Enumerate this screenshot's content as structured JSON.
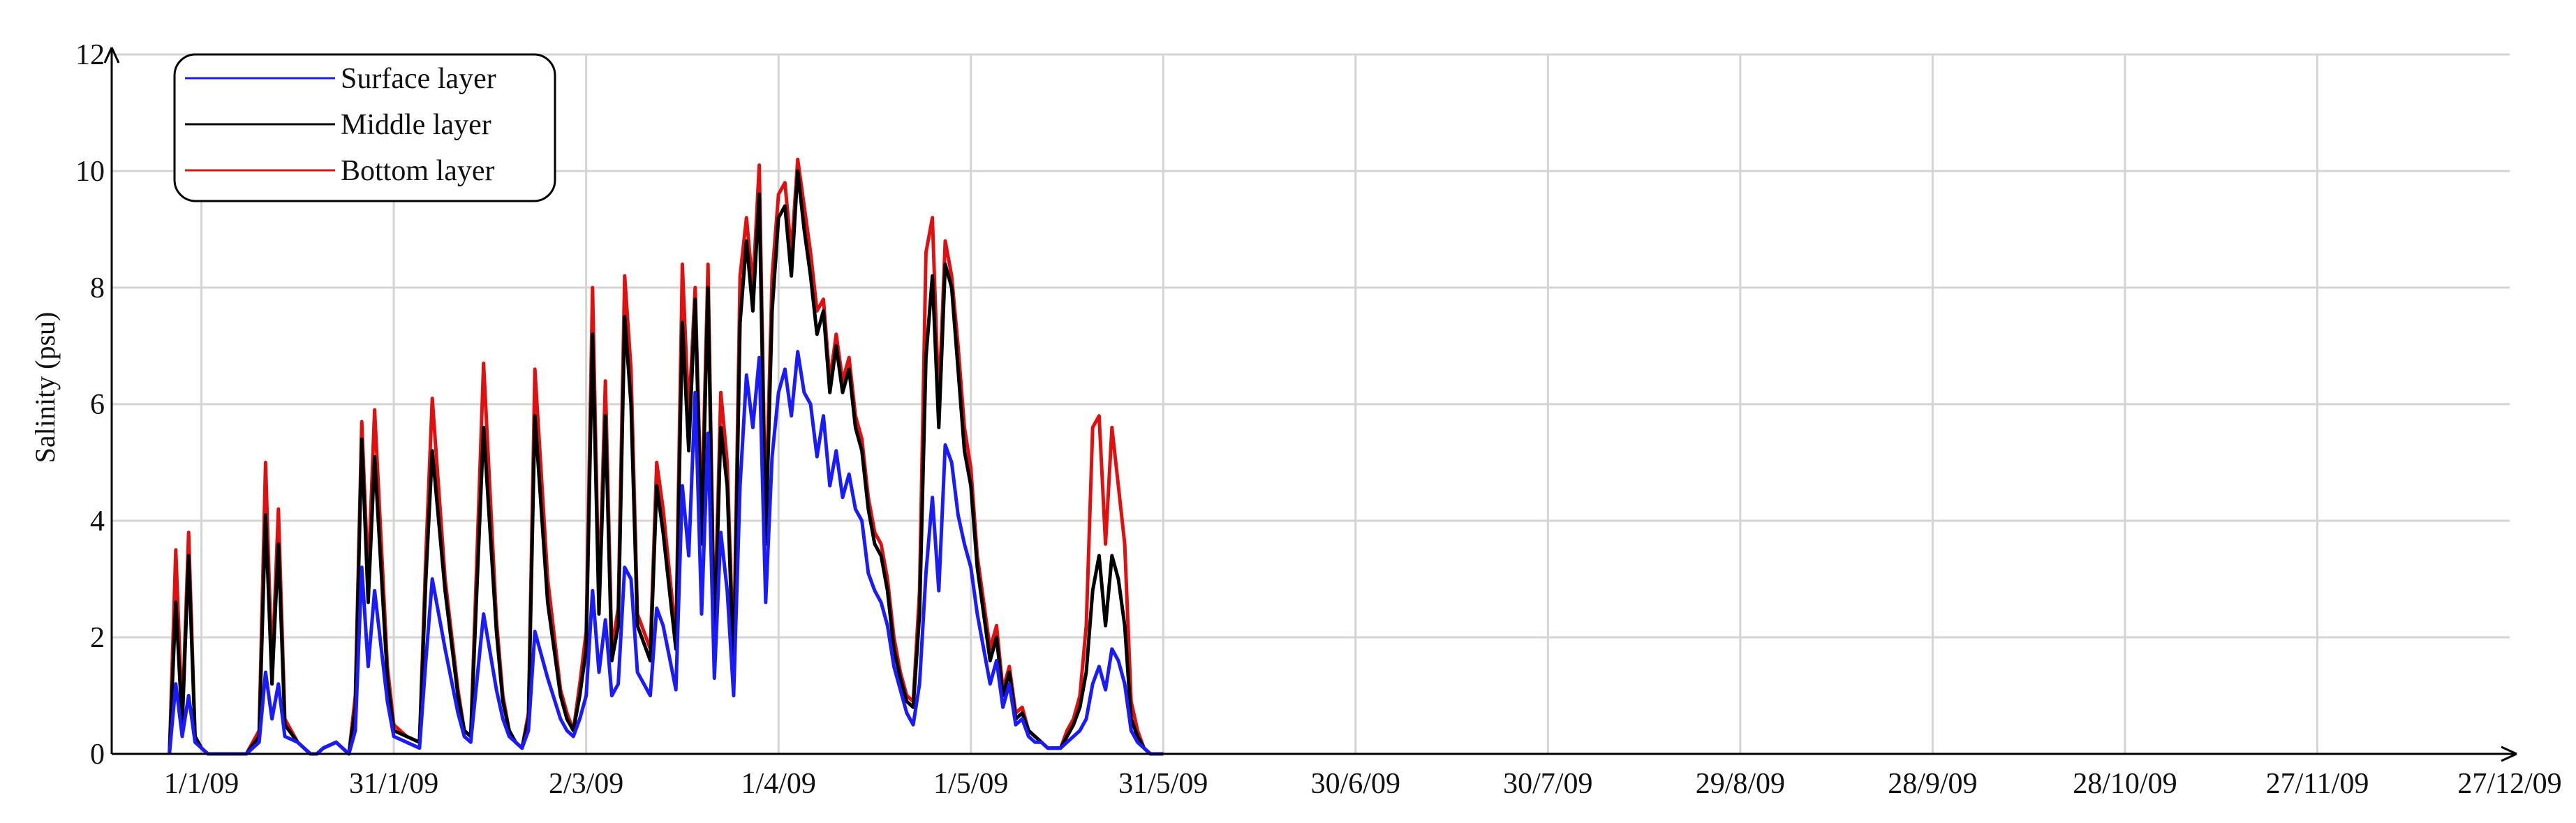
{
  "chart_data": {
    "type": "line",
    "title": "",
    "xlabel": "",
    "ylabel": "Salinity (psu)",
    "ylim": [
      0,
      12
    ],
    "yticks": [
      0,
      2,
      4,
      6,
      8,
      10,
      12
    ],
    "xlim": [
      "2008-12-18",
      "2009-12-27"
    ],
    "xticks": [
      {
        "date": "2009-01-01",
        "label": "1/1/09"
      },
      {
        "date": "2009-01-31",
        "label": "31/1/09"
      },
      {
        "date": "2009-03-02",
        "label": "2/3/09"
      },
      {
        "date": "2009-04-01",
        "label": "1/4/09"
      },
      {
        "date": "2009-05-01",
        "label": "1/5/09"
      },
      {
        "date": "2009-05-31",
        "label": "31/5/09"
      },
      {
        "date": "2009-06-30",
        "label": "30/6/09"
      },
      {
        "date": "2009-07-30",
        "label": "30/7/09"
      },
      {
        "date": "2009-08-29",
        "label": "29/8/09"
      },
      {
        "date": "2009-09-28",
        "label": "28/9/09"
      },
      {
        "date": "2009-10-28",
        "label": "28/10/09"
      },
      {
        "date": "2009-11-27",
        "label": "27/11/09"
      },
      {
        "date": "2009-12-27",
        "label": "27/12/09"
      }
    ],
    "grid": true,
    "legend_position": "top-left",
    "series": [
      {
        "name": "Surface layer",
        "color": "#1a1aff",
        "x": [
          "2008-12-27",
          "2008-12-28",
          "2008-12-29",
          "2008-12-30",
          "2008-12-31",
          "2009-01-01",
          "2009-01-02",
          "2009-01-04",
          "2009-01-05",
          "2009-01-06",
          "2009-01-07",
          "2009-01-08",
          "2009-01-10",
          "2009-01-11",
          "2009-01-12",
          "2009-01-13",
          "2009-01-14",
          "2009-01-16",
          "2009-01-17",
          "2009-01-18",
          "2009-01-19",
          "2009-01-20",
          "2009-01-22",
          "2009-01-23",
          "2009-01-24",
          "2009-01-25",
          "2009-01-26",
          "2009-01-27",
          "2009-01-28",
          "2009-01-30",
          "2009-01-31",
          "2009-02-02",
          "2009-02-04",
          "2009-02-05",
          "2009-02-06",
          "2009-02-08",
          "2009-02-10",
          "2009-02-11",
          "2009-02-12",
          "2009-02-14",
          "2009-02-16",
          "2009-02-17",
          "2009-02-18",
          "2009-02-19",
          "2009-02-20",
          "2009-02-21",
          "2009-02-22",
          "2009-02-24",
          "2009-02-26",
          "2009-02-27",
          "2009-02-28",
          "2009-03-01",
          "2009-03-02",
          "2009-03-03",
          "2009-03-04",
          "2009-03-05",
          "2009-03-06",
          "2009-03-07",
          "2009-03-08",
          "2009-03-09",
          "2009-03-10",
          "2009-03-12",
          "2009-03-13",
          "2009-03-14",
          "2009-03-16",
          "2009-03-17",
          "2009-03-18",
          "2009-03-19",
          "2009-03-20",
          "2009-03-21",
          "2009-03-22",
          "2009-03-23",
          "2009-03-24",
          "2009-03-25",
          "2009-03-26",
          "2009-03-27",
          "2009-03-28",
          "2009-03-29",
          "2009-03-30",
          "2009-03-31",
          "2009-04-01",
          "2009-04-02",
          "2009-04-03",
          "2009-04-04",
          "2009-04-05",
          "2009-04-06",
          "2009-04-07",
          "2009-04-08",
          "2009-04-09",
          "2009-04-10",
          "2009-04-11",
          "2009-04-12",
          "2009-04-13",
          "2009-04-14",
          "2009-04-15",
          "2009-04-16",
          "2009-04-17",
          "2009-04-18",
          "2009-04-19",
          "2009-04-20",
          "2009-04-21",
          "2009-04-22",
          "2009-04-23",
          "2009-04-24",
          "2009-04-25",
          "2009-04-26",
          "2009-04-27",
          "2009-04-28",
          "2009-04-29",
          "2009-04-30",
          "2009-05-01",
          "2009-05-02",
          "2009-05-03",
          "2009-05-04",
          "2009-05-05",
          "2009-05-06",
          "2009-05-07",
          "2009-05-08",
          "2009-05-09",
          "2009-05-10",
          "2009-05-11",
          "2009-05-12",
          "2009-05-13",
          "2009-05-14",
          "2009-05-15",
          "2009-05-16",
          "2009-05-17",
          "2009-05-18",
          "2009-05-19",
          "2009-05-20",
          "2009-05-21",
          "2009-05-22",
          "2009-05-23",
          "2009-05-24",
          "2009-05-25",
          "2009-05-26",
          "2009-05-27",
          "2009-05-28",
          "2009-05-29",
          "2009-05-30",
          "2009-05-31"
        ],
        "y": [
          0.0,
          1.2,
          0.3,
          1.0,
          0.2,
          0.1,
          0.0,
          0.0,
          0.0,
          0.0,
          0.0,
          0.0,
          0.2,
          1.4,
          0.6,
          1.2,
          0.3,
          0.2,
          0.1,
          0.0,
          0.0,
          0.1,
          0.2,
          0.1,
          0.0,
          0.4,
          3.2,
          1.5,
          2.8,
          0.9,
          0.3,
          0.2,
          0.1,
          1.6,
          3.0,
          1.8,
          0.7,
          0.3,
          0.2,
          2.4,
          1.1,
          0.6,
          0.3,
          0.2,
          0.1,
          0.4,
          2.1,
          1.3,
          0.6,
          0.4,
          0.3,
          0.6,
          1.0,
          2.8,
          1.4,
          2.3,
          1.0,
          1.2,
          3.2,
          3.0,
          1.4,
          1.0,
          2.5,
          2.2,
          1.1,
          4.6,
          3.4,
          6.2,
          2.4,
          5.5,
          1.3,
          3.8,
          2.8,
          1.0,
          4.6,
          6.5,
          5.6,
          6.8,
          2.6,
          5.1,
          6.2,
          6.6,
          5.8,
          6.9,
          6.2,
          6.0,
          5.1,
          5.8,
          4.6,
          5.2,
          4.4,
          4.8,
          4.2,
          4.0,
          3.1,
          2.8,
          2.6,
          2.2,
          1.5,
          1.1,
          0.7,
          0.5,
          1.2,
          3.1,
          4.4,
          2.8,
          5.3,
          5.0,
          4.1,
          3.6,
          3.2,
          2.4,
          1.8,
          1.2,
          1.6,
          0.8,
          1.2,
          0.5,
          0.6,
          0.3,
          0.2,
          0.2,
          0.1,
          0.1,
          0.1,
          0.2,
          0.3,
          0.4,
          0.6,
          1.2,
          1.5,
          1.1,
          1.8,
          1.6,
          1.2,
          0.4,
          0.2,
          0.1,
          0.0,
          0.0,
          0.0
        ]
      },
      {
        "name": "Middle layer",
        "color": "#000000",
        "x": [
          "2008-12-27",
          "2008-12-28",
          "2008-12-29",
          "2008-12-30",
          "2008-12-31",
          "2009-01-01",
          "2009-01-02",
          "2009-01-04",
          "2009-01-05",
          "2009-01-06",
          "2009-01-07",
          "2009-01-08",
          "2009-01-10",
          "2009-01-11",
          "2009-01-12",
          "2009-01-13",
          "2009-01-14",
          "2009-01-16",
          "2009-01-17",
          "2009-01-18",
          "2009-01-19",
          "2009-01-20",
          "2009-01-22",
          "2009-01-23",
          "2009-01-24",
          "2009-01-25",
          "2009-01-26",
          "2009-01-27",
          "2009-01-28",
          "2009-01-30",
          "2009-01-31",
          "2009-02-02",
          "2009-02-04",
          "2009-02-05",
          "2009-02-06",
          "2009-02-08",
          "2009-02-10",
          "2009-02-11",
          "2009-02-12",
          "2009-02-14",
          "2009-02-16",
          "2009-02-17",
          "2009-02-18",
          "2009-02-19",
          "2009-02-20",
          "2009-02-21",
          "2009-02-22",
          "2009-02-24",
          "2009-02-26",
          "2009-02-27",
          "2009-02-28",
          "2009-03-01",
          "2009-03-02",
          "2009-03-03",
          "2009-03-04",
          "2009-03-05",
          "2009-03-06",
          "2009-03-07",
          "2009-03-08",
          "2009-03-09",
          "2009-03-10",
          "2009-03-12",
          "2009-03-13",
          "2009-03-14",
          "2009-03-16",
          "2009-03-17",
          "2009-03-18",
          "2009-03-19",
          "2009-03-20",
          "2009-03-21",
          "2009-03-22",
          "2009-03-23",
          "2009-03-24",
          "2009-03-25",
          "2009-03-26",
          "2009-03-27",
          "2009-03-28",
          "2009-03-29",
          "2009-03-30",
          "2009-03-31",
          "2009-04-01",
          "2009-04-02",
          "2009-04-03",
          "2009-04-04",
          "2009-04-05",
          "2009-04-06",
          "2009-04-07",
          "2009-04-08",
          "2009-04-09",
          "2009-04-10",
          "2009-04-11",
          "2009-04-12",
          "2009-04-13",
          "2009-04-14",
          "2009-04-15",
          "2009-04-16",
          "2009-04-17",
          "2009-04-18",
          "2009-04-19",
          "2009-04-20",
          "2009-04-21",
          "2009-04-22",
          "2009-04-23",
          "2009-04-24",
          "2009-04-25",
          "2009-04-26",
          "2009-04-27",
          "2009-04-28",
          "2009-04-29",
          "2009-04-30",
          "2009-05-01",
          "2009-05-02",
          "2009-05-03",
          "2009-05-04",
          "2009-05-05",
          "2009-05-06",
          "2009-05-07",
          "2009-05-08",
          "2009-05-09",
          "2009-05-10",
          "2009-05-11",
          "2009-05-12",
          "2009-05-13",
          "2009-05-14",
          "2009-05-15",
          "2009-05-16",
          "2009-05-17",
          "2009-05-18",
          "2009-05-19",
          "2009-05-20",
          "2009-05-21",
          "2009-05-22",
          "2009-05-23",
          "2009-05-24",
          "2009-05-25",
          "2009-05-26",
          "2009-05-27",
          "2009-05-28",
          "2009-05-29",
          "2009-05-30",
          "2009-05-31"
        ],
        "y": [
          0.0,
          2.6,
          0.5,
          3.4,
          0.3,
          0.1,
          0.0,
          0.0,
          0.0,
          0.0,
          0.0,
          0.0,
          0.3,
          4.1,
          1.2,
          3.6,
          0.5,
          0.2,
          0.1,
          0.0,
          0.0,
          0.1,
          0.2,
          0.1,
          0.0,
          0.8,
          5.4,
          2.6,
          5.1,
          1.3,
          0.4,
          0.3,
          0.2,
          3.0,
          5.2,
          2.8,
          1.0,
          0.4,
          0.3,
          5.6,
          2.1,
          0.9,
          0.4,
          0.2,
          0.1,
          0.6,
          5.8,
          2.6,
          1.0,
          0.6,
          0.4,
          1.0,
          1.8,
          7.2,
          2.4,
          5.8,
          1.6,
          2.2,
          7.5,
          6.0,
          2.2,
          1.6,
          4.6,
          3.8,
          1.8,
          7.4,
          5.2,
          7.8,
          3.6,
          8.0,
          1.8,
          5.6,
          4.6,
          1.4,
          7.4,
          8.8,
          7.6,
          9.6,
          3.6,
          7.6,
          9.2,
          9.4,
          8.2,
          10.0,
          9.0,
          8.2,
          7.2,
          7.6,
          6.2,
          7.0,
          6.2,
          6.6,
          5.6,
          5.2,
          4.2,
          3.6,
          3.4,
          2.8,
          1.8,
          1.3,
          0.9,
          0.8,
          2.4,
          6.8,
          8.2,
          5.6,
          8.4,
          8.0,
          6.6,
          5.2,
          4.6,
          3.2,
          2.4,
          1.6,
          2.0,
          1.0,
          1.4,
          0.6,
          0.7,
          0.4,
          0.3,
          0.2,
          0.1,
          0.1,
          0.1,
          0.3,
          0.5,
          0.8,
          1.4,
          2.8,
          3.4,
          2.2,
          3.4,
          3.0,
          2.2,
          0.6,
          0.3,
          0.1,
          0.0,
          0.0,
          0.0
        ]
      },
      {
        "name": "Bottom layer",
        "color": "#e01010",
        "x": [
          "2008-12-27",
          "2008-12-28",
          "2008-12-29",
          "2008-12-30",
          "2008-12-31",
          "2009-01-01",
          "2009-01-02",
          "2009-01-04",
          "2009-01-05",
          "2009-01-06",
          "2009-01-07",
          "2009-01-08",
          "2009-01-10",
          "2009-01-11",
          "2009-01-12",
          "2009-01-13",
          "2009-01-14",
          "2009-01-16",
          "2009-01-17",
          "2009-01-18",
          "2009-01-19",
          "2009-01-20",
          "2009-01-22",
          "2009-01-23",
          "2009-01-24",
          "2009-01-25",
          "2009-01-26",
          "2009-01-27",
          "2009-01-28",
          "2009-01-30",
          "2009-01-31",
          "2009-02-02",
          "2009-02-04",
          "2009-02-05",
          "2009-02-06",
          "2009-02-08",
          "2009-02-10",
          "2009-02-11",
          "2009-02-12",
          "2009-02-14",
          "2009-02-16",
          "2009-02-17",
          "2009-02-18",
          "2009-02-19",
          "2009-02-20",
          "2009-02-21",
          "2009-02-22",
          "2009-02-24",
          "2009-02-26",
          "2009-02-27",
          "2009-02-28",
          "2009-03-01",
          "2009-03-02",
          "2009-03-03",
          "2009-03-04",
          "2009-03-05",
          "2009-03-06",
          "2009-03-07",
          "2009-03-08",
          "2009-03-09",
          "2009-03-10",
          "2009-03-12",
          "2009-03-13",
          "2009-03-14",
          "2009-03-16",
          "2009-03-17",
          "2009-03-18",
          "2009-03-19",
          "2009-03-20",
          "2009-03-21",
          "2009-03-22",
          "2009-03-23",
          "2009-03-24",
          "2009-03-25",
          "2009-03-26",
          "2009-03-27",
          "2009-03-28",
          "2009-03-29",
          "2009-03-30",
          "2009-03-31",
          "2009-04-01",
          "2009-04-02",
          "2009-04-03",
          "2009-04-04",
          "2009-04-05",
          "2009-04-06",
          "2009-04-07",
          "2009-04-08",
          "2009-04-09",
          "2009-04-10",
          "2009-04-11",
          "2009-04-12",
          "2009-04-13",
          "2009-04-14",
          "2009-04-15",
          "2009-04-16",
          "2009-04-17",
          "2009-04-18",
          "2009-04-19",
          "2009-04-20",
          "2009-04-21",
          "2009-04-22",
          "2009-04-23",
          "2009-04-24",
          "2009-04-25",
          "2009-04-26",
          "2009-04-27",
          "2009-04-28",
          "2009-04-29",
          "2009-04-30",
          "2009-05-01",
          "2009-05-02",
          "2009-05-03",
          "2009-05-04",
          "2009-05-05",
          "2009-05-06",
          "2009-05-07",
          "2009-05-08",
          "2009-05-09",
          "2009-05-10",
          "2009-05-11",
          "2009-05-12",
          "2009-05-13",
          "2009-05-14",
          "2009-05-15",
          "2009-05-16",
          "2009-05-17",
          "2009-05-18",
          "2009-05-19",
          "2009-05-20",
          "2009-05-21",
          "2009-05-22",
          "2009-05-23",
          "2009-05-24",
          "2009-05-25",
          "2009-05-26",
          "2009-05-27",
          "2009-05-28",
          "2009-05-29",
          "2009-05-30",
          "2009-05-31"
        ],
        "y": [
          0.0,
          3.5,
          0.6,
          3.8,
          0.3,
          0.1,
          0.0,
          0.0,
          0.0,
          0.0,
          0.0,
          0.0,
          0.4,
          5.0,
          1.4,
          4.2,
          0.6,
          0.2,
          0.1,
          0.0,
          0.0,
          0.1,
          0.2,
          0.1,
          0.0,
          1.0,
          5.7,
          3.0,
          5.9,
          1.5,
          0.5,
          0.3,
          0.2,
          3.4,
          6.1,
          3.0,
          1.1,
          0.4,
          0.3,
          6.7,
          2.3,
          1.0,
          0.4,
          0.2,
          0.1,
          0.7,
          6.6,
          3.0,
          1.1,
          0.7,
          0.4,
          1.2,
          2.1,
          8.0,
          2.6,
          6.4,
          1.8,
          2.5,
          8.2,
          6.6,
          2.4,
          1.8,
          5.0,
          4.2,
          2.0,
          8.4,
          5.8,
          8.0,
          4.0,
          8.4,
          2.0,
          6.2,
          5.0,
          1.6,
          8.2,
          9.2,
          8.0,
          10.1,
          4.0,
          8.2,
          9.6,
          9.8,
          8.6,
          10.2,
          9.4,
          8.6,
          7.6,
          7.8,
          6.4,
          7.2,
          6.4,
          6.8,
          5.8,
          5.4,
          4.4,
          3.8,
          3.6,
          3.0,
          2.0,
          1.4,
          1.0,
          0.9,
          2.8,
          8.6,
          9.2,
          6.0,
          8.8,
          8.2,
          7.0,
          5.6,
          4.9,
          3.4,
          2.6,
          1.8,
          2.2,
          1.1,
          1.5,
          0.7,
          0.8,
          0.4,
          0.3,
          0.2,
          0.1,
          0.1,
          0.1,
          0.4,
          0.6,
          1.0,
          2.2,
          5.6,
          5.8,
          3.6,
          5.6,
          4.6,
          3.6,
          0.9,
          0.4,
          0.1,
          0.0,
          0.0,
          0.0
        ]
      }
    ]
  }
}
